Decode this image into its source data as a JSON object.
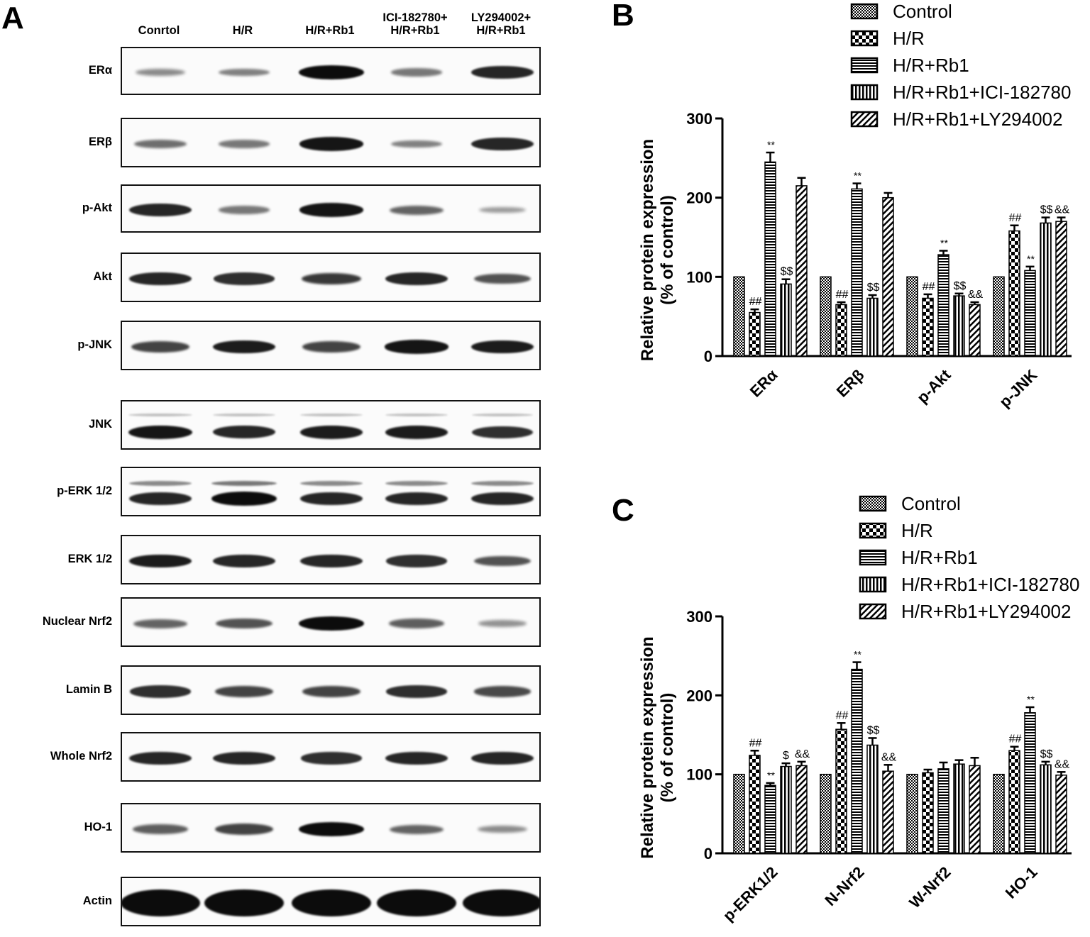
{
  "panels": {
    "a": "A",
    "b": "B",
    "c": "C"
  },
  "blot": {
    "lanes": [
      {
        "line1": "",
        "line2": "Conrtol"
      },
      {
        "line1": "",
        "line2": "H/R"
      },
      {
        "line1": "",
        "line2": "H/R+Rb1"
      },
      {
        "line1": "ICI-182780+",
        "line2": "H/R+Rb1"
      },
      {
        "line1": "LY294002+",
        "line2": "H/R+Rb1"
      }
    ],
    "rows": [
      {
        "label": "ERα",
        "intensity": [
          0.3,
          0.35,
          1.0,
          0.4,
          0.85
        ]
      },
      {
        "label": "ERβ",
        "intensity": [
          0.45,
          0.4,
          0.95,
          0.35,
          0.85
        ]
      },
      {
        "label": "p-Akt",
        "intensity": [
          0.85,
          0.4,
          0.95,
          0.5,
          0.2
        ]
      },
      {
        "label": "Akt",
        "intensity": [
          0.85,
          0.8,
          0.75,
          0.85,
          0.6
        ]
      },
      {
        "label": "p-JNK",
        "intensity": [
          0.7,
          0.9,
          0.7,
          0.95,
          0.9
        ]
      },
      {
        "label": "JNK",
        "intensity": [
          0.95,
          0.85,
          0.9,
          0.9,
          0.8
        ]
      },
      {
        "label": "p-ERK 1/2",
        "intensity": [
          0.85,
          1.0,
          0.85,
          0.85,
          0.85
        ]
      },
      {
        "label": "ERK 1/2",
        "intensity": [
          0.9,
          0.85,
          0.85,
          0.8,
          0.6
        ]
      },
      {
        "label": "Nuclear Nrf2",
        "intensity": [
          0.5,
          0.6,
          1.0,
          0.55,
          0.25
        ]
      },
      {
        "label": "Lamin B",
        "intensity": [
          0.8,
          0.7,
          0.7,
          0.8,
          0.65
        ]
      },
      {
        "label": "Whole Nrf2",
        "intensity": [
          0.85,
          0.85,
          0.8,
          0.85,
          0.85
        ]
      },
      {
        "label": "HO-1",
        "intensity": [
          0.55,
          0.7,
          1.0,
          0.5,
          0.3
        ]
      },
      {
        "label": "Actin",
        "intensity": [
          1.0,
          1.0,
          1.0,
          1.0,
          1.0
        ]
      }
    ]
  },
  "chart_data": [
    {
      "type": "bar",
      "panel": "B",
      "title": "",
      "ylabel_line1": "Relative protein expression",
      "ylabel_line2": "(% of control)",
      "xlabel": "",
      "ylim": [
        0,
        300
      ],
      "yticks": [
        0,
        100,
        200,
        300
      ],
      "categories": [
        "ERα",
        "ERβ",
        "p-Akt",
        "p-JNK"
      ],
      "legend_position": "top-right",
      "series": [
        {
          "name": "Control",
          "pattern": "checker-fine",
          "values": [
            100,
            100,
            100,
            100
          ],
          "errors": [
            0,
            0,
            0,
            0
          ],
          "marks": [
            "",
            "",
            "",
            ""
          ]
        },
        {
          "name": "H/R",
          "pattern": "checker-coarse",
          "values": [
            55,
            65,
            73,
            158
          ],
          "errors": [
            4,
            3,
            5,
            7
          ],
          "marks": [
            "##",
            "##",
            "##",
            "##"
          ]
        },
        {
          "name": "H/R+Rb1",
          "pattern": "horizontal-lines",
          "values": [
            245,
            211,
            128,
            108
          ],
          "errors": [
            12,
            7,
            5,
            5
          ],
          "marks": [
            "**",
            "**",
            "**",
            "**"
          ]
        },
        {
          "name": "H/R+Rb1+ICI-182780",
          "pattern": "vertical-lines",
          "values": [
            91,
            73,
            76,
            168
          ],
          "errors": [
            6,
            4,
            3,
            7
          ],
          "marks": [
            "$$",
            "$$",
            "$$",
            "$$"
          ]
        },
        {
          "name": "H/R+Rb1+LY294002",
          "pattern": "diagonal-lines",
          "values": [
            215,
            200,
            65,
            170
          ],
          "errors": [
            10,
            6,
            3,
            5
          ],
          "marks": [
            "",
            "",
            "&&",
            "&&"
          ]
        }
      ]
    },
    {
      "type": "bar",
      "panel": "C",
      "title": "",
      "ylabel_line1": "Relative protein expression",
      "ylabel_line2": "(% of control)",
      "xlabel": "",
      "ylim": [
        0,
        300
      ],
      "yticks": [
        0,
        100,
        200,
        300
      ],
      "categories": [
        "p-ERK1/2",
        "N-Nrf2",
        "W-Nrf2",
        "HO-1"
      ],
      "legend_position": "top-right",
      "series": [
        {
          "name": "Control",
          "pattern": "checker-fine",
          "values": [
            100,
            100,
            100,
            100
          ],
          "errors": [
            0,
            0,
            0,
            0
          ],
          "marks": [
            "",
            "",
            "",
            ""
          ]
        },
        {
          "name": "H/R",
          "pattern": "checker-coarse",
          "values": [
            124,
            157,
            102,
            130
          ],
          "errors": [
            6,
            8,
            4,
            5
          ],
          "marks": [
            "##",
            "##",
            "",
            "##"
          ]
        },
        {
          "name": "H/R+Rb1",
          "pattern": "horizontal-lines",
          "values": [
            86,
            233,
            107,
            178
          ],
          "errors": [
            3,
            9,
            8,
            7
          ],
          "marks": [
            "**",
            "**",
            "",
            "**"
          ]
        },
        {
          "name": "H/R+Rb1+ICI-182780",
          "pattern": "vertical-lines",
          "values": [
            110,
            137,
            113,
            112
          ],
          "errors": [
            4,
            9,
            5,
            4
          ],
          "marks": [
            "$",
            "$$",
            "",
            "$$"
          ]
        },
        {
          "name": "H/R+Rb1+LY294002",
          "pattern": "diagonal-lines",
          "values": [
            111,
            104,
            111,
            99
          ],
          "errors": [
            5,
            8,
            10,
            4
          ],
          "marks": [
            "&&",
            "&&",
            "",
            "&&"
          ]
        }
      ]
    }
  ]
}
